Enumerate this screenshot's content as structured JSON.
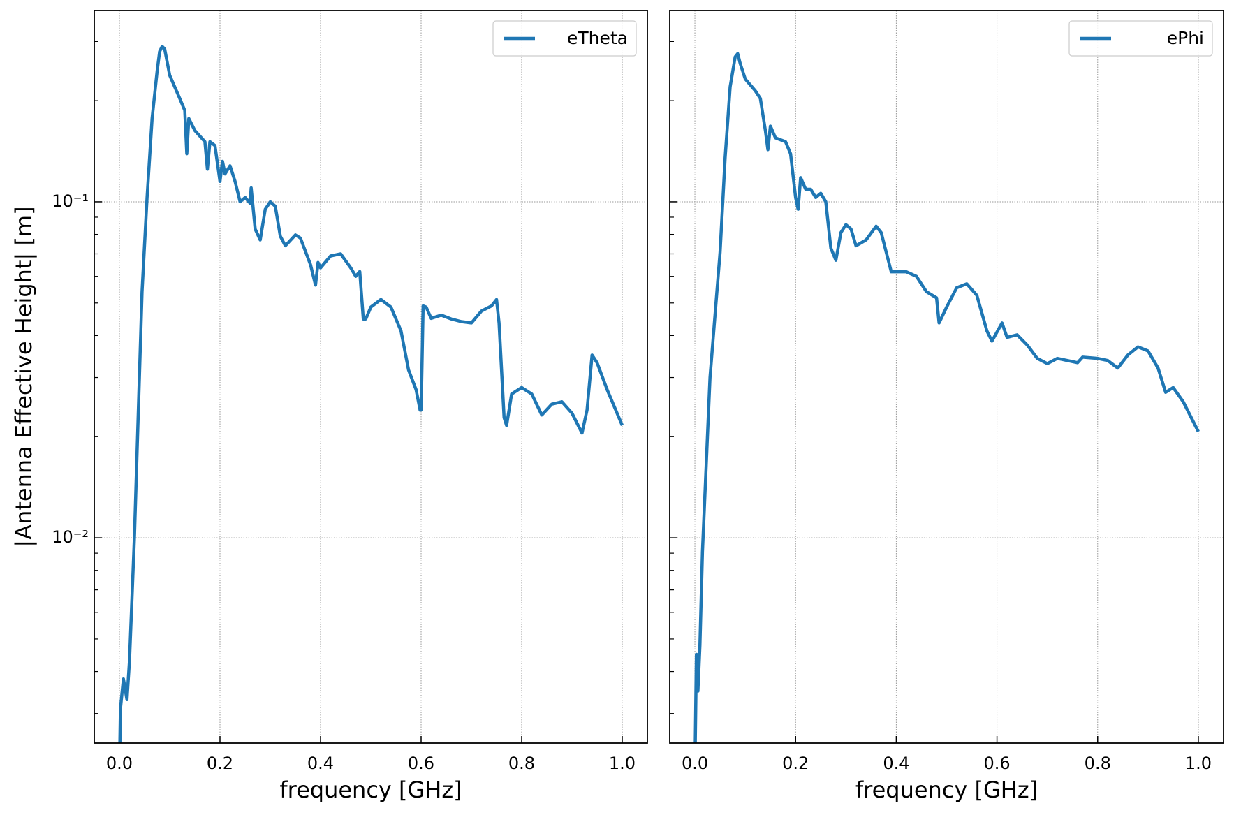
{
  "chart_data": [
    {
      "type": "line",
      "xlabel": "frequency [GHz]",
      "ylabel": "|Antenna Effective Height| [m]",
      "log_y": true,
      "grid": true,
      "legend": "upper right",
      "xlim": [
        -0.05,
        1.05
      ],
      "ylim": [
        0.00245,
        0.371
      ],
      "xticks": [
        {
          "value": 0,
          "label": "0.0"
        },
        0.2,
        0.4,
        0.6,
        0.8,
        {
          "value": 1,
          "label": "1.0"
        }
      ],
      "yticks": [
        {
          "value": 0.01,
          "label": "10⁻²"
        },
        {
          "value": 0.1,
          "label": "10⁻¹"
        }
      ],
      "yminorticks": [
        0.003,
        0.004,
        0.005,
        0.006,
        0.007,
        0.008,
        0.009,
        0.02,
        0.03,
        0.04,
        0.05,
        0.06,
        0.07,
        0.08,
        0.09,
        0.2,
        0.3
      ],
      "x": [
        0.0,
        0.002,
        0.008,
        0.015,
        0.02,
        0.03,
        0.045,
        0.055,
        0.065,
        0.075,
        0.08,
        0.085,
        0.09,
        0.1,
        0.12,
        0.13,
        0.134,
        0.138,
        0.15,
        0.17,
        0.175,
        0.18,
        0.19,
        0.2,
        0.205,
        0.21,
        0.22,
        0.23,
        0.24,
        0.25,
        0.26,
        0.262,
        0.27,
        0.28,
        0.29,
        0.3,
        0.31,
        0.32,
        0.33,
        0.35,
        0.36,
        0.38,
        0.39,
        0.395,
        0.4,
        0.42,
        0.44,
        0.46,
        0.47,
        0.478,
        0.485,
        0.49,
        0.5,
        0.52,
        0.54,
        0.56,
        0.575,
        0.59,
        0.598,
        0.6,
        0.604,
        0.61,
        0.62,
        0.64,
        0.66,
        0.68,
        0.7,
        0.72,
        0.74,
        0.75,
        0.755,
        0.765,
        0.77,
        0.78,
        0.8,
        0.82,
        0.84,
        0.86,
        0.88,
        0.9,
        0.92,
        0.93,
        0.94,
        0.95,
        0.97,
        1.0
      ],
      "series": [
        {
          "name": "eTheta",
          "color": "#1f77b4",
          "values": [
            0.002,
            0.0031,
            0.0038,
            0.0033,
            0.0043,
            0.0102,
            0.054,
            0.103,
            0.177,
            0.245,
            0.28,
            0.29,
            0.285,
            0.238,
            0.203,
            0.187,
            0.139,
            0.177,
            0.163,
            0.151,
            0.125,
            0.151,
            0.147,
            0.115,
            0.132,
            0.121,
            0.128,
            0.115,
            0.1,
            0.103,
            0.099,
            0.11,
            0.083,
            0.077,
            0.095,
            0.1,
            0.097,
            0.079,
            0.074,
            0.0797,
            0.078,
            0.065,
            0.0565,
            0.066,
            0.0636,
            0.069,
            0.07,
            0.0636,
            0.06,
            0.062,
            0.0448,
            0.0448,
            0.0486,
            0.0512,
            0.0486,
            0.0413,
            0.0316,
            0.0276,
            0.024,
            0.024,
            0.049,
            0.0486,
            0.045,
            0.046,
            0.0448,
            0.044,
            0.0436,
            0.0473,
            0.049,
            0.0512,
            0.0436,
            0.0228,
            0.0216,
            0.0268,
            0.028,
            0.0268,
            0.0232,
            0.025,
            0.0254,
            0.0235,
            0.0205,
            0.024,
            0.035,
            0.0332,
            0.0276,
            0.0216
          ]
        }
      ]
    },
    {
      "type": "line",
      "xlabel": "frequency [GHz]",
      "log_y": true,
      "grid": true,
      "legend": "upper right",
      "xlim": [
        -0.05,
        1.05
      ],
      "ylim": [
        0.00245,
        0.371
      ],
      "xticks": [
        {
          "value": 0,
          "label": "0.0"
        },
        0.2,
        0.4,
        0.6,
        0.8,
        {
          "value": 1,
          "label": "1.0"
        }
      ],
      "yticks": [
        0.01,
        0.1
      ],
      "yminorticks": [
        0.003,
        0.004,
        0.005,
        0.006,
        0.007,
        0.008,
        0.009,
        0.02,
        0.03,
        0.04,
        0.05,
        0.06,
        0.07,
        0.08,
        0.09,
        0.2,
        0.3
      ],
      "x": [
        0.0,
        0.003,
        0.006,
        0.01,
        0.015,
        0.03,
        0.05,
        0.06,
        0.07,
        0.08,
        0.085,
        0.09,
        0.1,
        0.12,
        0.13,
        0.14,
        0.145,
        0.15,
        0.16,
        0.18,
        0.19,
        0.2,
        0.205,
        0.21,
        0.22,
        0.23,
        0.24,
        0.25,
        0.26,
        0.27,
        0.28,
        0.29,
        0.3,
        0.31,
        0.32,
        0.34,
        0.36,
        0.37,
        0.39,
        0.4,
        0.42,
        0.44,
        0.46,
        0.48,
        0.485,
        0.5,
        0.52,
        0.54,
        0.56,
        0.58,
        0.59,
        0.61,
        0.62,
        0.64,
        0.66,
        0.68,
        0.7,
        0.72,
        0.74,
        0.76,
        0.77,
        0.8,
        0.82,
        0.84,
        0.86,
        0.88,
        0.9,
        0.92,
        0.935,
        0.95,
        0.97,
        1.0
      ],
      "series": [
        {
          "name": "ePhi",
          "color": "#1f77b4",
          "values": [
            0.002,
            0.0045,
            0.0035,
            0.0048,
            0.0091,
            0.03,
            0.0708,
            0.135,
            0.22,
            0.27,
            0.276,
            0.258,
            0.232,
            0.214,
            0.203,
            0.163,
            0.143,
            0.168,
            0.155,
            0.151,
            0.139,
            0.103,
            0.095,
            0.118,
            0.109,
            0.109,
            0.103,
            0.106,
            0.1,
            0.0728,
            0.067,
            0.081,
            0.0855,
            0.083,
            0.074,
            0.077,
            0.0846,
            0.081,
            0.0619,
            0.0619,
            0.0619,
            0.06,
            0.054,
            0.0518,
            0.0436,
            0.0486,
            0.0555,
            0.057,
            0.0527,
            0.0413,
            0.0385,
            0.0436,
            0.0395,
            0.0402,
            0.0375,
            0.0342,
            0.033,
            0.0342,
            0.0337,
            0.0332,
            0.0345,
            0.0342,
            0.0337,
            0.032,
            0.035,
            0.037,
            0.036,
            0.032,
            0.0271,
            0.028,
            0.0254,
            0.0207
          ]
        }
      ]
    }
  ]
}
